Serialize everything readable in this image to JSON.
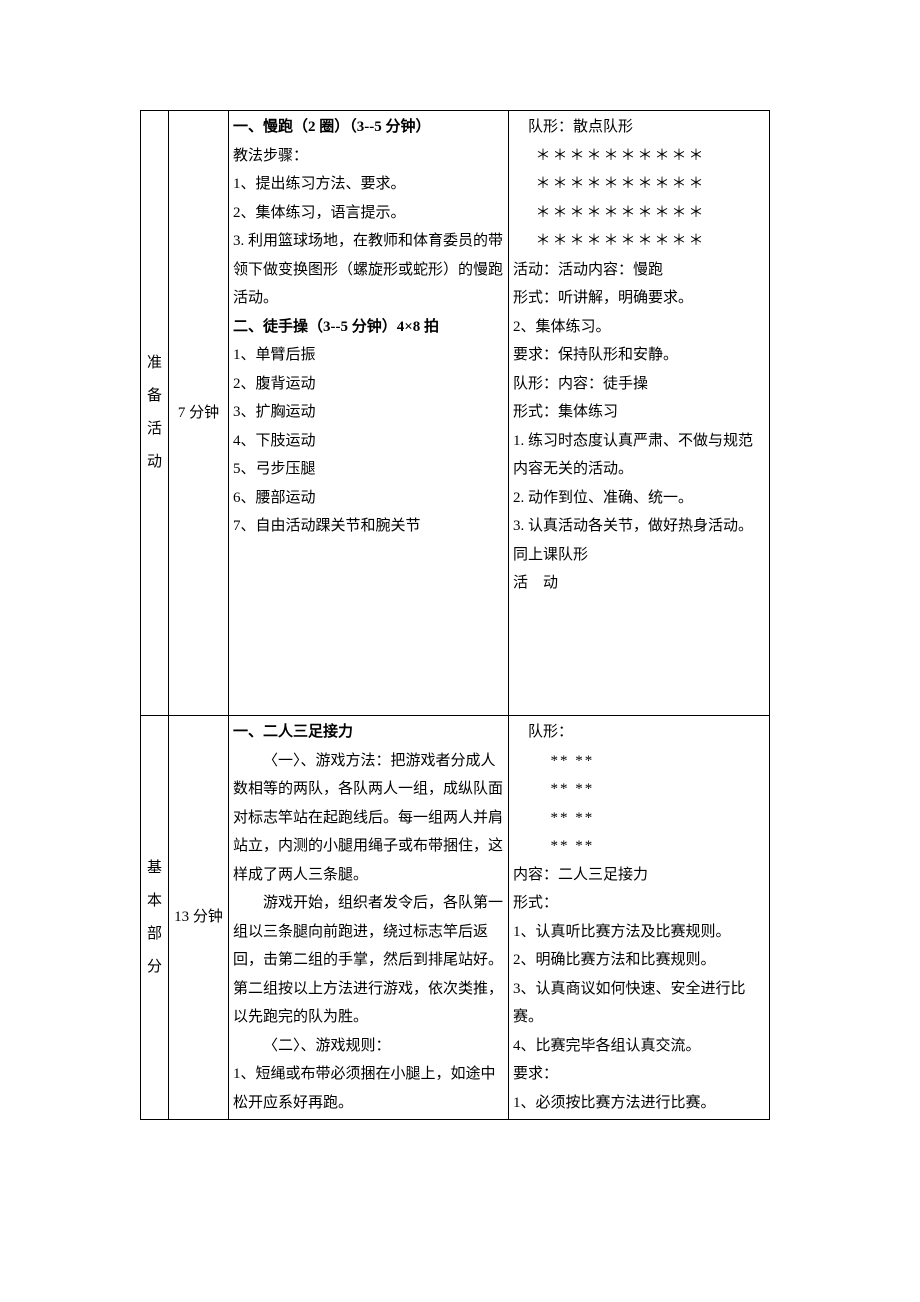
{
  "lesson": {
    "prep": {
      "label_chars": [
        "准",
        "备",
        "活",
        "动"
      ],
      "time": "7 分钟",
      "content": {
        "h1": "一、慢跑（2 圈）（3--5 分钟）",
        "steps_label": "教法步骤：",
        "c1": "1、提出练习方法、要求。",
        "c2": "2、集体练习，语言提示。",
        "c3": "3. 利用篮球场地，在教师和体育委员的带领下做变换图形（螺旋形或蛇形）的慢跑活动。",
        "h2": "二、徒手操（3--5 分钟）4×8 拍",
        "e1": "1、单臂后振",
        "e2": "2、腹背运动",
        "e3": "3、扩胸运动",
        "e4": "4、下肢运动",
        "e5": "5、弓步压腿",
        "e6": "6、腰部运动",
        "e7": "7、自由活动踝关节和腕关节"
      },
      "org": {
        "o1": "　队形：散点队形",
        "stars": "＊＊＊＊＊＊＊＊＊＊",
        "o2": "活动：活动内容：慢跑",
        "o3": "形式：听讲解，明确要求。",
        "o4": "2、集体练习。",
        "o5": "要求：保持队形和安静。",
        "o6": "队形：内容：徒手操",
        "o7": "形式：集体练习",
        "o8": "1. 练习时态度认真严肃、不做与规范内容无关的活动。",
        "o9": "2. 动作到位、准确、统一。",
        "o10": "3. 认真活动各关节，做好热身活动。同上课队形",
        "o11": "活　动"
      }
    },
    "main": {
      "label_chars": [
        "基",
        "本",
        "部",
        "分"
      ],
      "time": "13 分钟",
      "content": {
        "h1": "一、二人三足接力",
        "m1": "〈一〉、游戏方法：把游戏者分成人数相等的两队，各队两人一组，成纵队面对标志竿站在起跑线后。每一组两人并肩站立，内测的小腿用绳子或布带捆住，这样成了两人三条腿。",
        "m2": "游戏开始，组织者发令后，各队第一组以三条腿向前跑进，绕过标志竿后返回，击第二组的手掌，然后到排尾站好。第二组按以上方法进行游戏，依次类推，以先跑完的队为胜。",
        "r_label": "〈二〉、游戏规则：",
        "r1": "1、短绳或布带必须捆在小腿上，如途中松开应系好再跑。"
      },
      "org": {
        "o1": "　队形：",
        "pair": "**  **",
        "o2": "内容：二人三足接力",
        "o3": "形式：",
        "o4": "1、认真听比赛方法及比赛规则。",
        "o5": "2、明确比赛方法和比赛规则。",
        "o6": "3、认真商议如何快速、安全进行比赛。",
        "o7": "4、比赛完毕各组认真交流。",
        "o8": "要求：",
        "o9": "1、必须按比赛方法进行比赛。"
      }
    }
  }
}
